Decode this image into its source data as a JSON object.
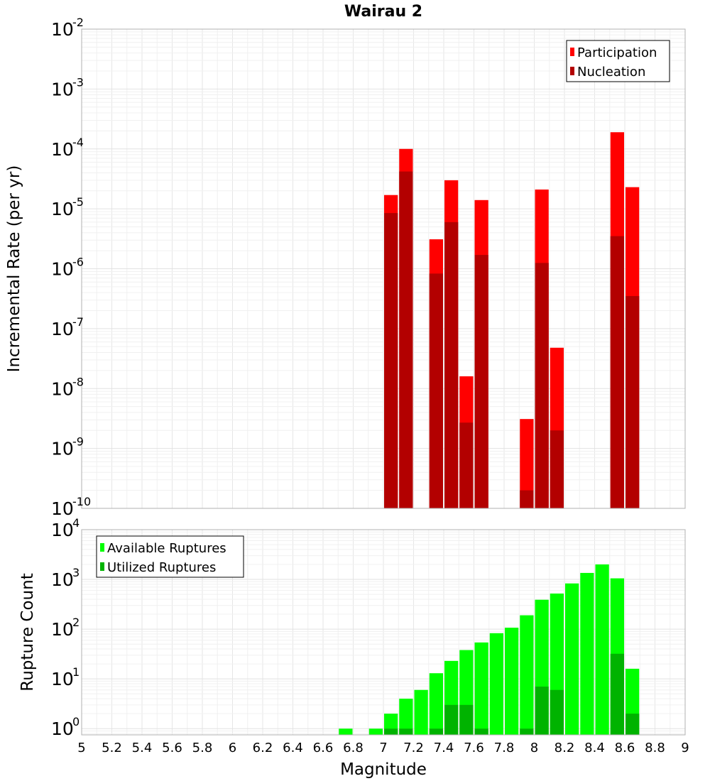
{
  "chart_data": [
    {
      "type": "bar",
      "panel": "top",
      "title": "Wairau 2",
      "xlabel": "",
      "ylabel": "Incremental Rate (per yr)",
      "yscale": "log",
      "ylim": [
        1e-10,
        0.01
      ],
      "xlim": [
        5,
        9
      ],
      "yticks": [
        {
          "base": "10",
          "exp": "-10"
        },
        {
          "base": "10",
          "exp": "-9"
        },
        {
          "base": "10",
          "exp": "-8"
        },
        {
          "base": "10",
          "exp": "-7"
        },
        {
          "base": "10",
          "exp": "-6"
        },
        {
          "base": "10",
          "exp": "-5"
        },
        {
          "base": "10",
          "exp": "-4"
        },
        {
          "base": "10",
          "exp": "-3"
        },
        {
          "base": "10",
          "exp": "-2"
        }
      ],
      "legend_position": "top-right",
      "bin_width": 0.1,
      "x": [
        7.05,
        7.15,
        7.35,
        7.45,
        7.55,
        7.65,
        7.95,
        8.05,
        8.15,
        8.55,
        8.65
      ],
      "series": [
        {
          "name": "Participation",
          "color": "#ff0000",
          "values": [
            1.7e-05,
            0.0001,
            3.1e-06,
            3e-05,
            1.6e-08,
            1.4e-05,
            3.1e-09,
            2.1e-05,
            4.8e-08,
            0.00019,
            2.3e-05
          ]
        },
        {
          "name": "Nucleation",
          "color": "#b30000",
          "values": [
            8.5e-06,
            4.2e-05,
            8.3e-07,
            6e-06,
            2.7e-09,
            1.7e-06,
            2e-10,
            1.25e-06,
            2e-09,
            3.5e-06,
            3.5e-07
          ]
        }
      ]
    },
    {
      "type": "bar",
      "panel": "bottom",
      "title": "",
      "xlabel": "Magnitude",
      "ylabel": "Rupture Count",
      "yscale": "log",
      "ylim": [
        0.75,
        10000
      ],
      "xlim": [
        5,
        9
      ],
      "yticks": [
        {
          "value": 1,
          "base": "10",
          "exp": "0"
        },
        {
          "value": 10,
          "base": "10",
          "exp": "1"
        },
        {
          "value": 100,
          "base": "10",
          "exp": "2"
        },
        {
          "value": 1000,
          "base": "10",
          "exp": "3"
        },
        {
          "value": 10000,
          "base": "10",
          "exp": "4"
        }
      ],
      "xticks": [
        "5",
        "5.2",
        "5.4",
        "5.6",
        "5.8",
        "6",
        "6.2",
        "6.4",
        "6.6",
        "6.8",
        "7",
        "7.2",
        "7.4",
        "7.6",
        "7.8",
        "8",
        "8.2",
        "8.4",
        "8.6",
        "8.8",
        "9"
      ],
      "legend_position": "top-left",
      "bin_width": 0.1,
      "x": [
        6.75,
        6.95,
        7.05,
        7.15,
        7.25,
        7.35,
        7.45,
        7.55,
        7.65,
        7.75,
        7.85,
        7.95,
        8.05,
        8.15,
        8.25,
        8.35,
        8.45,
        8.55,
        8.65
      ],
      "series": [
        {
          "name": "Available Ruptures",
          "color": "#00ff00",
          "values": [
            1,
            1,
            2,
            4,
            6,
            13,
            23,
            38,
            54,
            83,
            107,
            190,
            390,
            520,
            830,
            1350,
            2000,
            1050,
            16
          ]
        },
        {
          "name": "Utilized Ruptures",
          "color": "#00b300",
          "values": [
            0,
            0,
            1,
            1,
            0,
            1,
            3,
            3,
            1,
            0,
            0,
            1,
            7,
            6,
            0,
            0,
            0,
            32,
            2
          ]
        }
      ]
    }
  ]
}
